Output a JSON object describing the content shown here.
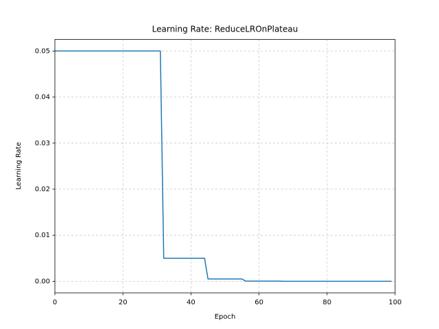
{
  "chart_data": {
    "type": "line",
    "title": "Learning Rate: ReduceLROnPlateau",
    "x_label": "Epoch",
    "y_label": "Learning Rate",
    "series": [
      {
        "color": "#1f77b4",
        "x": [
          0,
          31,
          32,
          44,
          45,
          55,
          56,
          66,
          67,
          77,
          78,
          88,
          89,
          99
        ],
        "values": [
          0.05,
          0.05,
          0.005,
          0.005,
          0.0005,
          0.0005,
          5e-05,
          5e-05,
          5e-06,
          5e-06,
          5e-07,
          5e-07,
          5e-08,
          5e-08
        ]
      }
    ],
    "xlim": [
      0,
      100
    ],
    "xticks": [
      0,
      20,
      40,
      60,
      80,
      100
    ],
    "ylim": [
      -0.0025,
      0.0525
    ],
    "yticks": [
      {
        "value": 0,
        "label": "0.00"
      },
      {
        "value": 0.01,
        "label": "0.01"
      },
      {
        "value": 0.02,
        "label": "0.02"
      },
      {
        "value": 0.03,
        "label": "0.03"
      },
      {
        "value": 0.04,
        "label": "0.04"
      },
      {
        "value": 0.05,
        "label": "0.05"
      }
    ],
    "grid": true
  }
}
